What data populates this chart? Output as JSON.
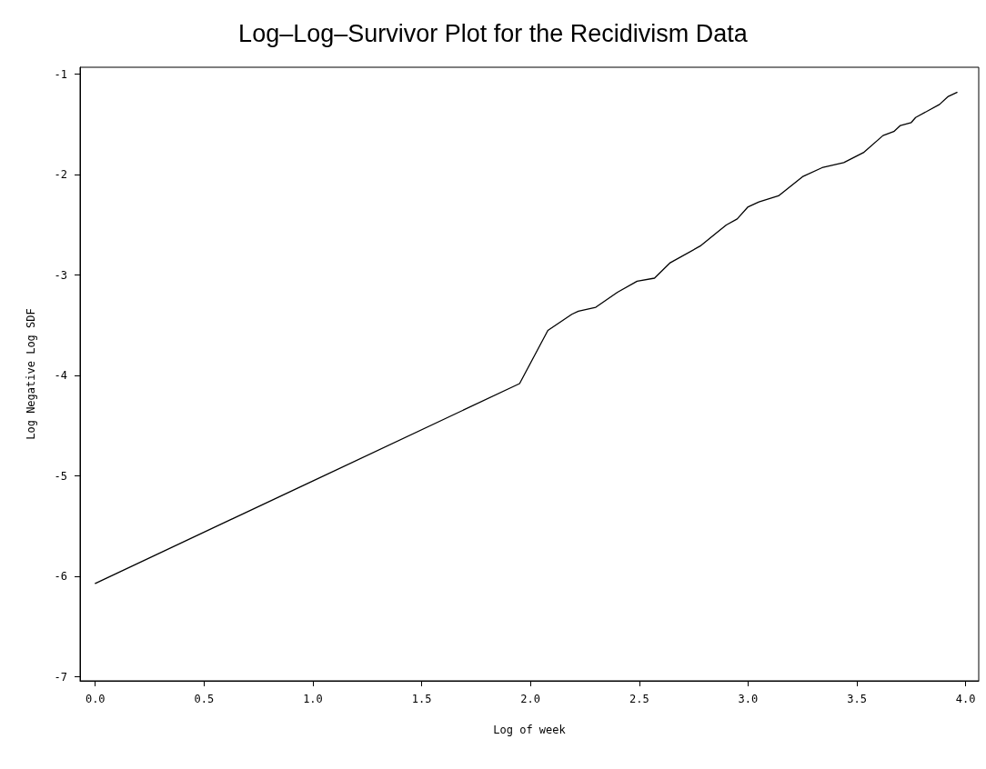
{
  "chart_data": {
    "type": "line",
    "title": "Log–Log–Survivor Plot for the Recidivism Data",
    "xlabel": "Log of week",
    "ylabel": "Log Negative Log SDF",
    "x": [
      0,
      1.0,
      1.95,
      2.08,
      2.19,
      2.22,
      2.3,
      2.4,
      2.49,
      2.57,
      2.64,
      2.78,
      2.9,
      2.95,
      3.0,
      3.05,
      3.14,
      3.25,
      3.34,
      3.44,
      3.53,
      3.62,
      3.67,
      3.7,
      3.75,
      3.77,
      3.88,
      3.92,
      3.96
    ],
    "series": [
      {
        "color": "#000000",
        "values": [
          -6.07,
          -5.05,
          -4.08,
          -3.55,
          -3.39,
          -3.36,
          -3.32,
          -3.17,
          -3.06,
          -3.03,
          -2.88,
          -2.71,
          -2.5,
          -2.44,
          -2.32,
          -2.27,
          -2.21,
          -2.02,
          -1.93,
          -1.88,
          -1.78,
          -1.61,
          -1.57,
          -1.51,
          -1.48,
          -1.43,
          -1.3,
          -1.22,
          -1.18
        ]
      }
    ],
    "xlim": [
      -0.07,
      4.06
    ],
    "ylim": [
      -7.04,
      -0.93
    ],
    "xticks": [
      {
        "value": 0,
        "label": "0.0"
      },
      {
        "value": 0.5,
        "label": "0.5"
      },
      {
        "value": 1,
        "label": "1.0"
      },
      {
        "value": 1.5,
        "label": "1.5"
      },
      {
        "value": 2,
        "label": "2.0"
      },
      {
        "value": 2.5,
        "label": "2.5"
      },
      {
        "value": 3,
        "label": "3.0"
      },
      {
        "value": 3.5,
        "label": "3.5"
      },
      {
        "value": 4,
        "label": "4.0"
      }
    ],
    "yticks": [
      -7,
      -6,
      -5,
      -4,
      -3,
      -2,
      -1
    ],
    "grid": false,
    "marker": "none",
    "line_style": "solid"
  }
}
